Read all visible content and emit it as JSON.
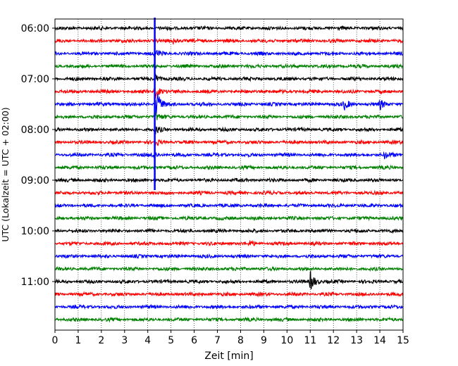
{
  "chart_data": {
    "type": "line",
    "title": "",
    "xlabel": "Zeit  [min]",
    "ylabel": "UTC (Lokalzeit = UTC + 02:00)",
    "xlim": [
      0,
      15
    ],
    "x_ticks": [
      "0",
      "1",
      "2",
      "3",
      "4",
      "5",
      "6",
      "7",
      "8",
      "9",
      "10",
      "11",
      "12",
      "13",
      "14",
      "15"
    ],
    "y_ticks": [
      "06:00",
      "07:00",
      "08:00",
      "09:00",
      "10:00",
      "11:00"
    ],
    "grid": "vertical dotted",
    "trace_colors": [
      "#000000",
      "#ff0000",
      "#0000ff",
      "#008000"
    ],
    "series": [
      {
        "start": "06:00",
        "color": "#000000",
        "events": []
      },
      {
        "start": "06:15",
        "color": "#ff0000",
        "events": [
          {
            "x": 5.1,
            "amp": 1.8
          }
        ]
      },
      {
        "start": "06:30",
        "color": "#0000ff",
        "events": [
          {
            "x": 4.3,
            "amp": 3
          }
        ]
      },
      {
        "start": "06:45",
        "color": "#008000",
        "events": []
      },
      {
        "start": "07:00",
        "color": "#000000",
        "events": [
          {
            "x": 4.3,
            "amp": 3
          }
        ]
      },
      {
        "start": "07:15",
        "color": "#ff0000",
        "events": [
          {
            "x": 4.3,
            "amp": 5
          }
        ]
      },
      {
        "start": "07:30",
        "color": "#0000ff",
        "events": [
          {
            "x": 4.35,
            "amp": 10
          },
          {
            "x": 12.45,
            "amp": 3.5
          },
          {
            "x": 14.0,
            "amp": 3
          }
        ]
      },
      {
        "start": "07:45",
        "color": "#008000",
        "events": [
          {
            "x": 4.3,
            "amp": 3
          }
        ]
      },
      {
        "start": "08:00",
        "color": "#000000",
        "events": [
          {
            "x": 4.3,
            "amp": 2.5
          }
        ]
      },
      {
        "start": "08:15",
        "color": "#ff0000",
        "events": [
          {
            "x": 4.3,
            "amp": 2
          }
        ]
      },
      {
        "start": "08:30",
        "color": "#0000ff",
        "events": [
          {
            "x": 4.2,
            "amp": 2
          },
          {
            "x": 14.2,
            "amp": 2
          }
        ]
      },
      {
        "start": "08:45",
        "color": "#008000",
        "events": []
      },
      {
        "start": "09:00",
        "color": "#000000",
        "events": []
      },
      {
        "start": "09:15",
        "color": "#ff0000",
        "events": []
      },
      {
        "start": "09:30",
        "color": "#0000ff",
        "events": []
      },
      {
        "start": "09:45",
        "color": "#008000",
        "events": []
      },
      {
        "start": "10:00",
        "color": "#000000",
        "events": []
      },
      {
        "start": "10:15",
        "color": "#ff0000",
        "events": [
          {
            "x": 8.4,
            "amp": 1.5
          }
        ]
      },
      {
        "start": "10:30",
        "color": "#0000ff",
        "events": []
      },
      {
        "start": "10:45",
        "color": "#008000",
        "events": []
      },
      {
        "start": "11:00",
        "color": "#000000",
        "events": [
          {
            "x": 11.0,
            "amp": 7
          }
        ]
      },
      {
        "start": "11:15",
        "color": "#ff0000",
        "events": []
      },
      {
        "start": "11:30",
        "color": "#0000ff",
        "events": []
      },
      {
        "start": "11:45",
        "color": "#008000",
        "events": []
      }
    ],
    "long_spike": {
      "x": 4.3,
      "from": "05:45",
      "to": "09:15",
      "color": "#0000ff"
    }
  }
}
